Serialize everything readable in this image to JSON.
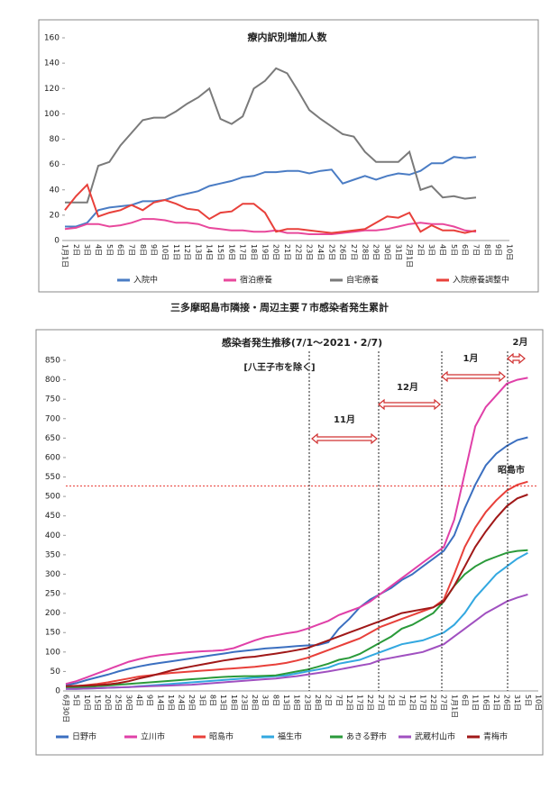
{
  "heading": "三多摩昭島市隣接・周辺主要７市感染者発生累計",
  "chart_data": [
    {
      "type": "line",
      "title": "療内訳別増加人数",
      "categories": [
        "1月1日",
        "2日",
        "3日",
        "4日",
        "5日",
        "6日",
        "7日",
        "8日",
        "9日",
        "10日",
        "11日",
        "12日",
        "13日",
        "14日",
        "15日",
        "16日",
        "17日",
        "18日",
        "19日",
        "20日",
        "21日",
        "22日",
        "23日",
        "24日",
        "25日",
        "26日",
        "27日",
        "28日",
        "29日",
        "30日",
        "31日",
        "2月1日",
        "2日",
        "3日",
        "4日",
        "5日",
        "6日",
        "7日",
        "8日",
        "9日",
        "10日"
      ],
      "ylim": [
        0,
        160
      ],
      "yticks": [
        0,
        20,
        40,
        60,
        80,
        100,
        120,
        140,
        160
      ],
      "grid": false,
      "legend": "bottom",
      "series": [
        {
          "name": "入院中",
          "color": "#4a7cc4",
          "values": [
            11,
            11,
            14,
            24,
            26,
            27,
            28,
            31,
            31,
            32,
            35,
            37,
            39,
            43,
            45,
            47,
            50,
            51,
            54,
            54,
            55,
            55,
            53,
            55,
            56,
            45,
            48,
            51,
            48,
            51,
            53,
            52,
            55,
            61,
            61,
            66,
            65,
            66,
            null,
            null,
            null
          ]
        },
        {
          "name": "宿泊療養",
          "color": "#e8489c",
          "values": [
            9,
            10,
            13,
            13,
            11,
            12,
            14,
            17,
            17,
            16,
            14,
            14,
            13,
            10,
            9,
            8,
            8,
            7,
            7,
            8,
            6,
            6,
            5,
            5,
            5,
            6,
            7,
            8,
            8,
            9,
            11,
            13,
            14,
            13,
            13,
            11,
            8,
            7,
            null,
            null,
            null
          ]
        },
        {
          "name": "自宅療養",
          "color": "#7a7a7a",
          "values": [
            30,
            30,
            30,
            59,
            62,
            75,
            85,
            95,
            97,
            97,
            102,
            108,
            113,
            120,
            96,
            92,
            98,
            120,
            126,
            136,
            132,
            118,
            103,
            96,
            90,
            84,
            82,
            70,
            62,
            62,
            62,
            70,
            40,
            43,
            34,
            35,
            33,
            34,
            null,
            null,
            null
          ]
        },
        {
          "name": "入院療養調整中",
          "color": "#e8403a",
          "values": [
            24,
            35,
            44,
            19,
            22,
            24,
            28,
            24,
            30,
            32,
            29,
            25,
            24,
            17,
            22,
            23,
            29,
            29,
            22,
            7,
            9,
            9,
            8,
            7,
            6,
            7,
            8,
            9,
            14,
            19,
            18,
            22,
            7,
            12,
            8,
            8,
            6,
            8,
            null,
            null,
            null
          ]
        }
      ]
    },
    {
      "type": "line",
      "title": "感染者発生推移(7/1～2021・2/7)",
      "annotations": [
        "[八王子市を除く]",
        "11月",
        "12月",
        "1月",
        "2月",
        "昭島市"
      ],
      "hline": 527,
      "categories": [
        "6月30日",
        "5日",
        "10日",
        "15日",
        "20日",
        "25日",
        "30日",
        "4日",
        "9日",
        "14日",
        "19日",
        "24日",
        "29日",
        "3日",
        "8日",
        "13日",
        "18日",
        "23日",
        "28日",
        "3日",
        "8日",
        "13日",
        "18日",
        "23日",
        "28日",
        "2日",
        "7日",
        "12日",
        "17日",
        "22日",
        "27日",
        "2日",
        "7日",
        "12日",
        "17日",
        "22日",
        "27日",
        "1月1日",
        "6日",
        "11日",
        "16日",
        "21日",
        "26日",
        "31日",
        "5日",
        "10日"
      ],
      "ylim": [
        0,
        850
      ],
      "yticks": [
        0,
        50,
        100,
        150,
        200,
        250,
        300,
        350,
        400,
        450,
        500,
        550,
        600,
        650,
        700,
        750,
        800,
        850
      ],
      "grid": false,
      "legend": "bottom",
      "series": [
        {
          "name": "日野市",
          "color": "#3b6fc0",
          "values": [
            15,
            20,
            28,
            35,
            42,
            50,
            57,
            63,
            68,
            72,
            76,
            80,
            84,
            88,
            92,
            96,
            100,
            103,
            106,
            109,
            111,
            113,
            115,
            117,
            118,
            125,
            160,
            185,
            215,
            235,
            250,
            265,
            285,
            300,
            320,
            340,
            360,
            400,
            470,
            530,
            580,
            610,
            630,
            645,
            652,
            null
          ]
        },
        {
          "name": "立川市",
          "color": "#e040a8",
          "values": [
            18,
            25,
            35,
            45,
            55,
            65,
            75,
            82,
            88,
            92,
            95,
            98,
            100,
            102,
            103,
            105,
            110,
            120,
            130,
            138,
            143,
            148,
            152,
            160,
            170,
            180,
            195,
            205,
            215,
            230,
            250,
            270,
            290,
            310,
            330,
            350,
            370,
            440,
            560,
            680,
            730,
            760,
            790,
            800,
            805,
            null
          ]
        },
        {
          "name": "昭島市",
          "color": "#e8403a",
          "values": [
            10,
            12,
            15,
            18,
            22,
            27,
            32,
            37,
            40,
            43,
            46,
            48,
            50,
            52,
            54,
            56,
            58,
            60,
            62,
            65,
            68,
            72,
            78,
            85,
            95,
            105,
            115,
            125,
            135,
            150,
            165,
            175,
            185,
            195,
            205,
            215,
            235,
            300,
            370,
            420,
            460,
            490,
            515,
            530,
            538,
            null
          ]
        },
        {
          "name": "福生市",
          "color": "#33a8e0",
          "values": [
            5,
            5,
            6,
            7,
            8,
            9,
            10,
            12,
            14,
            16,
            18,
            20,
            22,
            24,
            26,
            28,
            30,
            32,
            34,
            36,
            38,
            40,
            45,
            50,
            55,
            60,
            70,
            75,
            80,
            90,
            100,
            110,
            120,
            125,
            130,
            140,
            150,
            170,
            200,
            240,
            270,
            300,
            320,
            340,
            355,
            null
          ]
        },
        {
          "name": "あきる野市",
          "color": "#2a9a3a",
          "values": [
            8,
            9,
            10,
            12,
            14,
            16,
            18,
            20,
            22,
            24,
            26,
            28,
            30,
            32,
            34,
            36,
            37,
            38,
            38,
            39,
            40,
            45,
            50,
            55,
            62,
            70,
            80,
            85,
            95,
            110,
            125,
            140,
            160,
            170,
            185,
            200,
            230,
            270,
            300,
            320,
            335,
            345,
            355,
            360,
            362,
            null
          ]
        },
        {
          "name": "武蔵村山市",
          "color": "#a050c0",
          "values": [
            5,
            5,
            6,
            7,
            8,
            9,
            10,
            11,
            12,
            13,
            14,
            15,
            16,
            18,
            20,
            22,
            24,
            26,
            28,
            30,
            32,
            35,
            38,
            42,
            46,
            50,
            55,
            60,
            65,
            70,
            80,
            85,
            90,
            95,
            100,
            110,
            120,
            140,
            160,
            180,
            200,
            215,
            230,
            240,
            248,
            null
          ]
        },
        {
          "name": "青梅市",
          "color": "#a01818",
          "values": [
            12,
            13,
            14,
            15,
            17,
            20,
            25,
            32,
            38,
            45,
            52,
            58,
            63,
            68,
            73,
            78,
            82,
            86,
            88,
            92,
            96,
            100,
            105,
            110,
            120,
            130,
            140,
            150,
            160,
            170,
            180,
            190,
            200,
            205,
            210,
            215,
            230,
            270,
            320,
            370,
            410,
            445,
            475,
            495,
            505,
            null
          ]
        }
      ]
    }
  ]
}
